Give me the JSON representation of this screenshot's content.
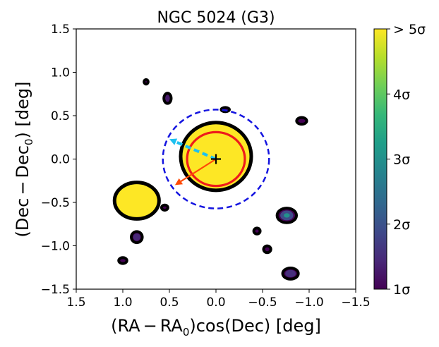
{
  "chart_data": {
    "type": "contour",
    "title": "NGC 5024 (G3)",
    "xlabel_parts": [
      "(RA",
      "−",
      "RA",
      "0",
      ")cos(Dec) [deg]"
    ],
    "ylabel_parts": [
      "(Dec",
      "−",
      "Dec",
      "0",
      ") [deg]"
    ],
    "xlim": [
      1.5,
      -1.5
    ],
    "ylim": [
      -1.5,
      1.5
    ],
    "xticks": [
      1.5,
      1.0,
      0.5,
      0.0,
      -0.5,
      -1.0,
      -1.5
    ],
    "xtick_labels": [
      "1.5",
      "1.0",
      "0.5",
      "0.0",
      "−0.5",
      "−1.0",
      "−1.5"
    ],
    "yticks": [
      1.5,
      1.0,
      0.5,
      0.0,
      -0.5,
      -1.0,
      -1.5
    ],
    "ytick_labels": [
      "1.5",
      "1.0",
      "0.5",
      "0.0",
      "−0.5",
      "−1.0",
      "−1.5"
    ],
    "colorbar": {
      "range": [
        1,
        5
      ],
      "ticks": [
        1,
        2,
        3,
        4,
        5
      ],
      "tick_labels": [
        "1σ",
        "2σ",
        "3σ",
        "4σ",
        "> 5σ"
      ],
      "colormap": [
        "#440154",
        "#482878",
        "#3e4989",
        "#31688e",
        "#26828e",
        "#1f9e89",
        "#35b779",
        "#6ece58",
        "#b5de2b",
        "#fde725"
      ]
    },
    "blobs": [
      {
        "x": 0.0,
        "y": 0.03,
        "rx": 0.36,
        "ry": 0.37,
        "level": 5
      },
      {
        "x": 0.85,
        "y": -0.48,
        "rx": 0.22,
        "ry": 0.19,
        "level": 5
      },
      {
        "x": 0.55,
        "y": -0.56,
        "rx": 0.03,
        "ry": 0.025,
        "level": 1
      },
      {
        "x": 0.75,
        "y": 0.89,
        "rx": 0.018,
        "ry": 0.022,
        "level": 1
      },
      {
        "x": 0.52,
        "y": 0.7,
        "rx": 0.035,
        "ry": 0.055,
        "level": 1.3
      },
      {
        "x": -0.1,
        "y": 0.57,
        "rx": 0.04,
        "ry": 0.02,
        "level": 1
      },
      {
        "x": -0.92,
        "y": 0.44,
        "rx": 0.05,
        "ry": 0.035,
        "level": 1
      },
      {
        "x": -0.76,
        "y": -0.65,
        "rx": 0.1,
        "ry": 0.08,
        "level": 3
      },
      {
        "x": -0.44,
        "y": -0.83,
        "rx": 0.03,
        "ry": 0.03,
        "level": 1
      },
      {
        "x": -0.55,
        "y": -1.04,
        "rx": 0.035,
        "ry": 0.035,
        "level": 1
      },
      {
        "x": -0.8,
        "y": -1.32,
        "rx": 0.08,
        "ry": 0.06,
        "level": 1.6
      },
      {
        "x": 0.85,
        "y": -0.9,
        "rx": 0.055,
        "ry": 0.06,
        "level": 1.5
      },
      {
        "x": 1.0,
        "y": -1.17,
        "rx": 0.04,
        "ry": 0.03,
        "level": 1
      }
    ],
    "red_circle": {
      "x": 0.0,
      "y": 0.0,
      "r": 0.31
    },
    "dashed_circle": {
      "x": 0.0,
      "y": 0.0,
      "r": 0.57
    },
    "center_marker": {
      "x": 0.0,
      "y": 0.0,
      "symbol": "+"
    },
    "arrows": [
      {
        "name": "cyan-dashed-arrow",
        "from": [
          0.0,
          0.0
        ],
        "to": [
          0.5,
          0.23
        ],
        "color": "#1ec1f0",
        "dashed": true
      },
      {
        "name": "orange-arrow",
        "from": [
          0.0,
          0.0
        ],
        "to": [
          0.44,
          -0.3
        ],
        "color": "#ff4a05",
        "dashed": false
      }
    ]
  }
}
